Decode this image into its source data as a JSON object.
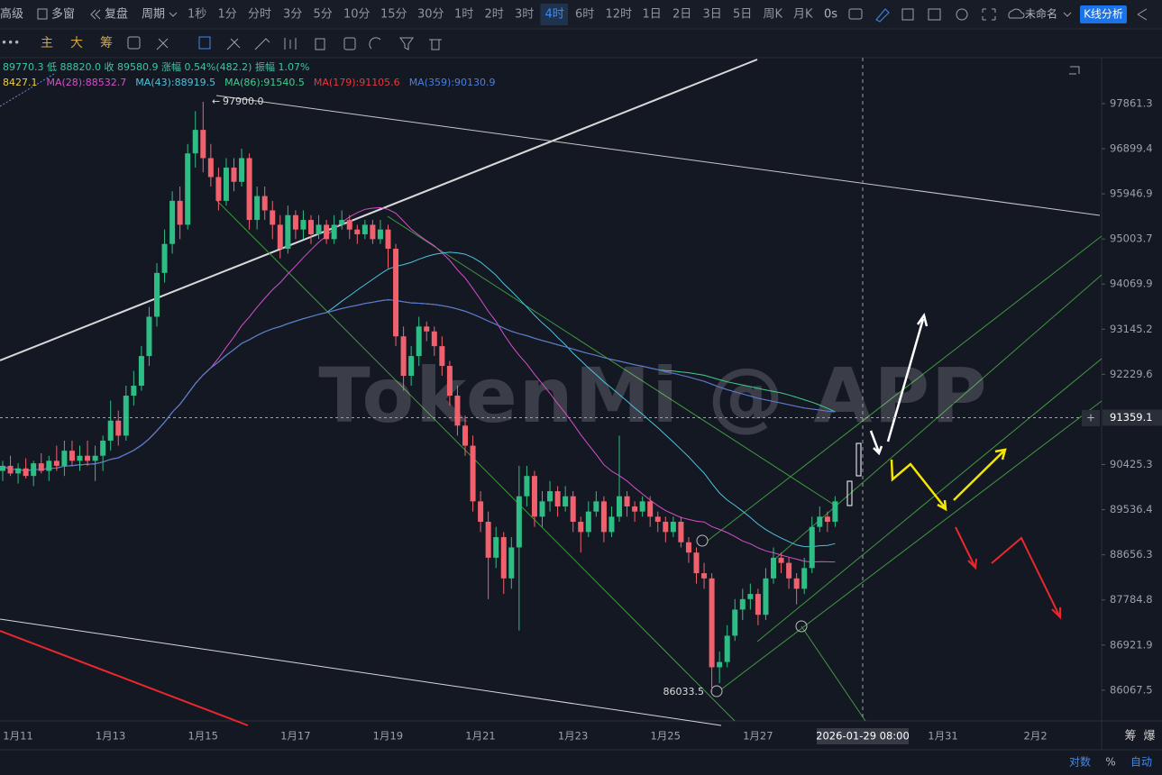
{
  "toolbar": {
    "left": [
      "高级",
      "多窗",
      "复盘",
      "周期"
    ],
    "periods": [
      "1秒",
      "1分",
      "分时",
      "3分",
      "5分",
      "10分",
      "15分",
      "30分",
      "1时",
      "2时",
      "3时",
      "4时",
      "6时",
      "12时",
      "1日",
      "2日",
      "3日",
      "5日",
      "周K",
      "月K"
    ],
    "active_period": "4时",
    "timer": "0s",
    "layout_name": "未命名",
    "analysis_button": "K线分析"
  },
  "drawing_toolbar": [
    "主",
    "大",
    "筹"
  ],
  "chart_data": {
    "type": "candlestick",
    "info_line": "89770.3 低 88820.0 收 89580.9 涨幅 0.54%(482.2) 振幅 1.07%",
    "ma_legend": [
      {
        "label": "8427.1",
        "color": "#e6cf4a"
      },
      {
        "label": "MA(28):88532.7",
        "color": "#d64fc9"
      },
      {
        "label": "MA(43):88919.5",
        "color": "#4cc3dc"
      },
      {
        "label": "MA(86):91540.5",
        "color": "#3fcf8e"
      },
      {
        "label": "MA(179):91105.6",
        "color": "#e8383d"
      },
      {
        "label": "MA(359):90130.9",
        "color": "#4a7fe0"
      }
    ],
    "watermark": "TokenMi @ APP",
    "log_scale": true,
    "ylim": [
      85490,
      98850
    ],
    "yticks": [
      97861.3,
      96899.4,
      95946.9,
      95003.7,
      94069.9,
      93145.2,
      92229.6,
      90425.3,
      89536.4,
      88656.3,
      87784.8,
      86921.9,
      86067.5
    ],
    "current_price": 91359.1,
    "high_label": {
      "value": 97900,
      "label": "97900.0"
    },
    "low_label": 86033.5,
    "x_labels": [
      "1月11",
      "1月13",
      "1月15",
      "1月17",
      "1月19",
      "1月21",
      "1月23",
      "1月25",
      "1月27",
      null,
      "1月31",
      "2月2"
    ],
    "crosshair_time": "2026-01-29 08:00",
    "up_color": "#2ebd85",
    "down_color": "#f0616d",
    "candles": [
      [
        90300,
        90500,
        90100,
        90400
      ],
      [
        90400,
        90600,
        90200,
        90250
      ],
      [
        90250,
        90450,
        90050,
        90350
      ],
      [
        90350,
        90550,
        90150,
        90200
      ],
      [
        90200,
        90500,
        90000,
        90450
      ],
      [
        90450,
        90650,
        90250,
        90300
      ],
      [
        90300,
        90600,
        90100,
        90500
      ],
      [
        90500,
        90800,
        90300,
        90400
      ],
      [
        90400,
        90900,
        90200,
        90700
      ],
      [
        90700,
        90900,
        90400,
        90500
      ],
      [
        90500,
        90800,
        90300,
        90600
      ],
      [
        90600,
        90900,
        90400,
        90500
      ],
      [
        90500,
        90800,
        90100,
        90600
      ],
      [
        90600,
        91000,
        90300,
        90900
      ],
      [
        90900,
        91700,
        90700,
        91300
      ],
      [
        91300,
        91500,
        90800,
        91000
      ],
      [
        91000,
        92000,
        90900,
        91800
      ],
      [
        91800,
        92300,
        91600,
        92000
      ],
      [
        92000,
        92800,
        91900,
        92600
      ],
      [
        92600,
        93600,
        92400,
        93400
      ],
      [
        93400,
        94500,
        93200,
        94300
      ],
      [
        94300,
        95200,
        94100,
        94900
      ],
      [
        94900,
        96000,
        94700,
        95800
      ],
      [
        95800,
        96100,
        95000,
        95300
      ],
      [
        95300,
        97000,
        95200,
        96800
      ],
      [
        96800,
        97700,
        96500,
        97300
      ],
      [
        97300,
        97900,
        96400,
        96700
      ],
      [
        96700,
        97000,
        96100,
        96300
      ],
      [
        96300,
        96500,
        95600,
        95800
      ],
      [
        95800,
        96700,
        95700,
        96500
      ],
      [
        96500,
        96700,
        96000,
        96200
      ],
      [
        96200,
        96900,
        96100,
        96700
      ],
      [
        96700,
        96800,
        95200,
        95400
      ],
      [
        95400,
        96100,
        95200,
        95900
      ],
      [
        95900,
        96100,
        95400,
        95600
      ],
      [
        95600,
        95800,
        95000,
        95300
      ],
      [
        95300,
        95500,
        94600,
        94800
      ],
      [
        94800,
        95700,
        94700,
        95500
      ],
      [
        95500,
        95600,
        95000,
        95200
      ],
      [
        95200,
        95600,
        95000,
        95400
      ],
      [
        95400,
        95500,
        94900,
        95100
      ],
      [
        95100,
        95500,
        95000,
        95300
      ],
      [
        95300,
        95400,
        94900,
        95000
      ],
      [
        95000,
        95500,
        94900,
        95300
      ],
      [
        95300,
        95600,
        95200,
        95400
      ],
      [
        95400,
        95500,
        95000,
        95200
      ],
      [
        95200,
        95300,
        94900,
        95100
      ],
      [
        95100,
        95400,
        95000,
        95300
      ],
      [
        95300,
        95400,
        94900,
        95000
      ],
      [
        95000,
        95400,
        94900,
        95200
      ],
      [
        95200,
        95300,
        94400,
        94800
      ],
      [
        94800,
        94900,
        92800,
        93000
      ],
      [
        93000,
        93200,
        91900,
        92200
      ],
      [
        92200,
        92800,
        92000,
        92600
      ],
      [
        92600,
        93400,
        92400,
        93200
      ],
      [
        93200,
        93300,
        92900,
        93100
      ],
      [
        93100,
        93200,
        92600,
        92800
      ],
      [
        92800,
        93000,
        92200,
        92400
      ],
      [
        92400,
        92500,
        91600,
        91800
      ],
      [
        91800,
        92000,
        91000,
        91200
      ],
      [
        91200,
        91400,
        90600,
        90800
      ],
      [
        90800,
        91000,
        89500,
        89700
      ],
      [
        89700,
        89900,
        89100,
        89300
      ],
      [
        89300,
        89500,
        87800,
        88600
      ],
      [
        88600,
        89200,
        88400,
        89000
      ],
      [
        89000,
        89100,
        87900,
        88200
      ],
      [
        88200,
        89000,
        88000,
        88800
      ],
      [
        88800,
        90400,
        87200,
        89800
      ],
      [
        89800,
        90400,
        89600,
        90200
      ],
      [
        90200,
        90300,
        89200,
        89400
      ],
      [
        89400,
        89900,
        89200,
        89700
      ],
      [
        89700,
        90100,
        89500,
        89900
      ],
      [
        89900,
        90000,
        89400,
        89600
      ],
      [
        89600,
        90000,
        89500,
        89800
      ],
      [
        89800,
        89900,
        89100,
        89300
      ],
      [
        89300,
        89400,
        88700,
        89100
      ],
      [
        89100,
        89700,
        89000,
        89500
      ],
      [
        89500,
        89900,
        89400,
        89700
      ],
      [
        89700,
        89800,
        88900,
        89100
      ],
      [
        89100,
        89600,
        89000,
        89400
      ],
      [
        89400,
        91000,
        89300,
        89800
      ],
      [
        89800,
        89900,
        89400,
        89600
      ],
      [
        89600,
        89700,
        89300,
        89500
      ],
      [
        89500,
        89800,
        89400,
        89700
      ],
      [
        89700,
        89800,
        89200,
        89400
      ],
      [
        89400,
        89500,
        89100,
        89300
      ],
      [
        89300,
        89400,
        88900,
        89100
      ],
      [
        89100,
        89400,
        89000,
        89300
      ],
      [
        89300,
        89400,
        88800,
        88900
      ],
      [
        88900,
        89000,
        88500,
        88700
      ],
      [
        88700,
        88800,
        88100,
        88300
      ],
      [
        88300,
        88500,
        88000,
        88200
      ],
      [
        88200,
        88300,
        86033.5,
        86500
      ],
      [
        86500,
        86800,
        86200,
        86600
      ],
      [
        86600,
        87300,
        86500,
        87100
      ],
      [
        87100,
        87800,
        87000,
        87600
      ],
      [
        87600,
        88000,
        87400,
        87800
      ],
      [
        87800,
        88100,
        87600,
        87900
      ],
      [
        87900,
        88000,
        87300,
        87500
      ],
      [
        87500,
        88400,
        87400,
        88200
      ],
      [
        88200,
        88800,
        88100,
        88600
      ],
      [
        88600,
        88700,
        88300,
        88500
      ],
      [
        88500,
        88600,
        88000,
        88200
      ],
      [
        88200,
        88300,
        87700,
        88000
      ],
      [
        88000,
        88600,
        87900,
        88400
      ],
      [
        88400,
        89400,
        88300,
        89200
      ],
      [
        89200,
        89600,
        89100,
        89400
      ],
      [
        89400,
        89500,
        89100,
        89300
      ],
      [
        89300,
        89800,
        89200,
        89700
      ]
    ]
  },
  "bottom_bar": [
    "对数",
    "%",
    "自动"
  ],
  "side_labels": [
    "筹",
    "爆"
  ]
}
